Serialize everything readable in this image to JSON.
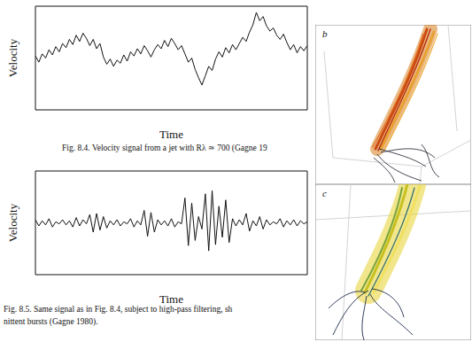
{
  "chart_data": [
    {
      "type": "line",
      "x_label": "Time",
      "y_label": "Velocity",
      "caption": [
        "Fig. 8.4. Velocity signal from a jet with Rλ ≃ 700 (Gagne 19"
      ],
      "x": [
        0,
        1,
        2,
        3,
        4,
        5,
        6,
        7,
        8,
        9,
        10,
        11,
        12,
        13,
        14,
        15,
        16,
        17,
        18,
        19,
        20,
        21,
        22,
        23,
        24,
        25,
        26,
        27,
        28,
        29,
        30,
        31,
        32,
        33,
        34,
        35,
        36,
        37,
        38,
        39,
        40,
        41,
        42,
        43,
        44,
        45,
        46,
        47,
        48,
        49,
        50,
        51,
        52,
        53,
        54,
        55,
        56,
        57,
        58,
        59,
        60,
        61,
        62,
        63,
        64,
        65,
        66,
        67,
        68,
        69,
        70,
        71,
        72,
        73,
        74,
        75,
        76,
        77,
        78,
        79,
        80
      ],
      "values": [
        5.2,
        4.6,
        5.4,
        5.0,
        5.8,
        5.3,
        6.1,
        5.6,
        6.4,
        6.0,
        6.8,
        6.3,
        7.2,
        6.6,
        7.4,
        6.9,
        6.2,
        6.8,
        5.9,
        6.4,
        5.1,
        4.4,
        4.9,
        4.2,
        4.8,
        4.5,
        5.3,
        4.7,
        5.6,
        5.2,
        5.9,
        5.4,
        6.2,
        5.7,
        5.1,
        5.8,
        6.3,
        5.9,
        6.7,
        6.1,
        6.9,
        6.4,
        5.8,
        6.2,
        5.4,
        4.6,
        5.0,
        3.9,
        3.1,
        2.4,
        3.3,
        4.2,
        3.8,
        4.9,
        5.6,
        5.1,
        6.0,
        5.5,
        6.3,
        5.8,
        6.4,
        7.0,
        6.6,
        7.5,
        8.2,
        9.4,
        8.6,
        9.0,
        8.1,
        7.6,
        7.9,
        7.2,
        6.8,
        7.3,
        6.5,
        5.8,
        6.3,
        5.5,
        6.1,
        5.7,
        6.2
      ],
      "color": "#111111",
      "xlim": [
        0,
        80
      ],
      "xticks": [
        0,
        20,
        40,
        60,
        80
      ],
      "ylim": [
        0,
        10
      ],
      "yticks": [
        2,
        5,
        8
      ],
      "tick_labels": false
    },
    {
      "type": "line",
      "x_label": "Time",
      "y_label": "Velocity",
      "caption": [
        "Fig. 8.5. Same signal as in Fig. 8.4, subject to high-pass filtering, sh",
        "nittent bursts (Gagne 1980)."
      ],
      "x": [
        0,
        1,
        2,
        3,
        4,
        5,
        6,
        7,
        8,
        9,
        10,
        11,
        12,
        13,
        14,
        15,
        16,
        17,
        18,
        19,
        20,
        21,
        22,
        23,
        24,
        25,
        26,
        27,
        28,
        29,
        30,
        31,
        32,
        33,
        34,
        35,
        36,
        37,
        38,
        39,
        40,
        41,
        42,
        43,
        44,
        45,
        46,
        47,
        48,
        49,
        50,
        51,
        52,
        53,
        54,
        55,
        56,
        57,
        58,
        59,
        60,
        61,
        62,
        63,
        64,
        65,
        66,
        67,
        68,
        69,
        70,
        71,
        72,
        73,
        74,
        75,
        76,
        77,
        78,
        79,
        80
      ],
      "values": [
        5.3,
        4.7,
        5.2,
        4.8,
        5.4,
        4.6,
        5.1,
        4.9,
        5.3,
        4.8,
        5.2,
        4.6,
        5.5,
        4.7,
        5.3,
        4.9,
        5.8,
        4.1,
        5.9,
        4.3,
        5.6,
        4.5,
        5.2,
        4.8,
        5.3,
        4.7,
        5.1,
        4.9,
        5.4,
        4.6,
        5.2,
        4.8,
        6.2,
        3.7,
        6.0,
        4.1,
        5.3,
        4.8,
        5.2,
        4.7,
        5.4,
        4.6,
        5.1,
        4.9,
        7.4,
        2.8,
        6.9,
        3.3,
        5.6,
        4.4,
        7.8,
        2.3,
        8.1,
        2.9,
        6.6,
        3.6,
        7.2,
        3.1,
        5.4,
        4.7,
        5.3,
        4.8,
        5.9,
        4.2,
        5.2,
        4.7,
        5.6,
        4.4,
        5.3,
        4.8,
        5.1,
        4.9,
        5.4,
        4.6,
        5.2,
        4.8,
        5.3,
        4.7,
        5.2,
        4.9,
        5.1
      ],
      "color": "#111111",
      "xlim": [
        0,
        80
      ],
      "xticks": [
        0,
        20,
        40,
        60,
        80
      ],
      "ylim": [
        0,
        10
      ],
      "yticks": [
        2,
        5,
        8
      ],
      "tick_labels": false
    }
  ],
  "images": {
    "panels": [
      {
        "label": "b"
      },
      {
        "label": "c"
      }
    ]
  }
}
